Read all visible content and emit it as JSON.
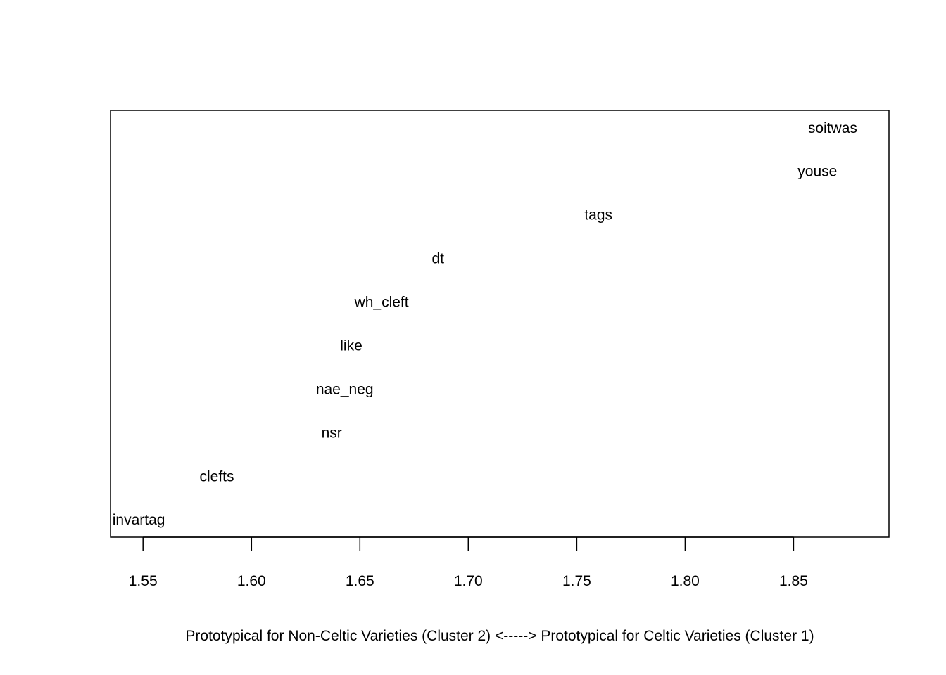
{
  "chart_data": {
    "type": "scatter",
    "title": "",
    "xlabel": "Prototypical for Non-Celtic Varieties (Cluster 2) <-----> Prototypical for Celtic Varieties (Cluster 1)",
    "ylabel": "",
    "xlim": [
      1.535,
      1.894
    ],
    "ylim": [
      0.6,
      10.4
    ],
    "grid": false,
    "x_ticks": [
      1.55,
      1.6,
      1.65,
      1.7,
      1.75,
      1.8,
      1.85
    ],
    "x_tick_labels": [
      "1.55",
      "1.60",
      "1.65",
      "1.70",
      "1.75",
      "1.80",
      "1.85"
    ],
    "points": [
      {
        "label": "invartag",
        "x": 1.548,
        "y": 1
      },
      {
        "label": "clefts",
        "x": 1.584,
        "y": 2
      },
      {
        "label": "nsr",
        "x": 1.637,
        "y": 3
      },
      {
        "label": "nae_neg",
        "x": 1.643,
        "y": 4
      },
      {
        "label": "like",
        "x": 1.646,
        "y": 5
      },
      {
        "label": "wh_cleft",
        "x": 1.66,
        "y": 6
      },
      {
        "label": "dt",
        "x": 1.686,
        "y": 7
      },
      {
        "label": "tags",
        "x": 1.76,
        "y": 8
      },
      {
        "label": "youse",
        "x": 1.861,
        "y": 9
      },
      {
        "label": "soitwas",
        "x": 1.868,
        "y": 10
      }
    ]
  }
}
